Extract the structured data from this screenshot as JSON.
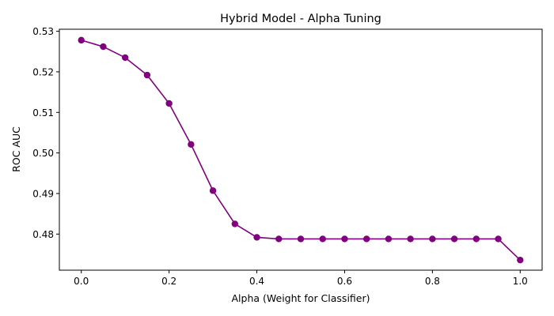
{
  "chart_data": {
    "type": "line",
    "title": "Hybrid Model - Alpha Tuning",
    "xlabel": "Alpha (Weight for Classifier)",
    "ylabel": "ROC AUC",
    "xlim": [
      -0.05,
      1.05
    ],
    "ylim": [
      0.4711,
      0.5305
    ],
    "xticks": [
      0.0,
      0.2,
      0.4,
      0.6,
      0.8,
      1.0
    ],
    "xtick_labels": [
      "0.0",
      "0.2",
      "0.4",
      "0.6",
      "0.8",
      "1.0"
    ],
    "yticks": [
      0.48,
      0.49,
      0.5,
      0.51,
      0.52,
      0.53
    ],
    "ytick_labels": [
      "0.48",
      "0.49",
      "0.50",
      "0.51",
      "0.52",
      "0.53"
    ],
    "grid": false,
    "series": [
      {
        "color": "#800080",
        "marker": "circle",
        "x": [
          0.0,
          0.05,
          0.1,
          0.15,
          0.2,
          0.25,
          0.3,
          0.35,
          0.4,
          0.45,
          0.5,
          0.55,
          0.6,
          0.65,
          0.7,
          0.75,
          0.8,
          0.85,
          0.9,
          0.95,
          1.0
        ],
        "y": [
          0.5278,
          0.5262,
          0.5235,
          0.5192,
          0.5122,
          0.5021,
          0.4907,
          0.4825,
          0.4792,
          0.4788,
          0.4788,
          0.4788,
          0.4788,
          0.4788,
          0.4788,
          0.4788,
          0.4788,
          0.4788,
          0.4788,
          0.4788,
          0.4736
        ]
      }
    ]
  }
}
